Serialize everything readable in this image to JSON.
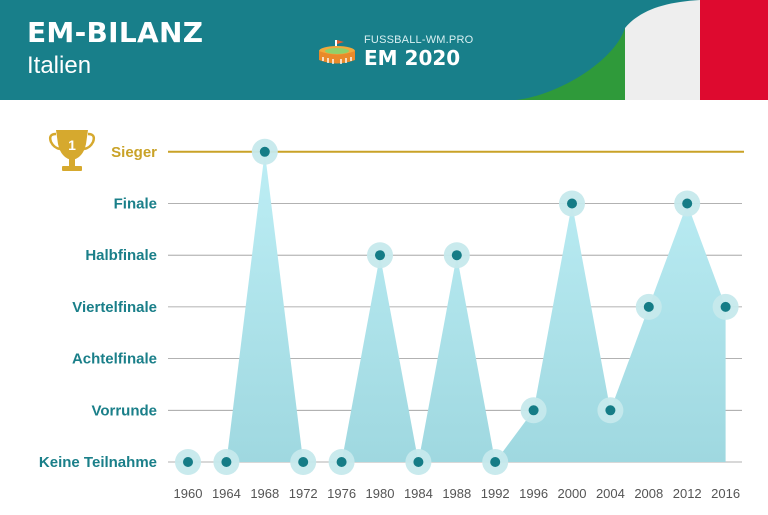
{
  "header": {
    "title": "EM-BILANZ",
    "subtitle": "Italien",
    "brand_site": "FUSSBALL-WM.PRO",
    "brand_event": "EM 2020",
    "trophy_number": "1",
    "colors": {
      "header_bg": "#187f8a",
      "flag_green": "#2f9a3a",
      "flag_white": "#eeeeee",
      "flag_red": "#de0a2f"
    }
  },
  "chart_data": {
    "type": "area",
    "x": [
      1960,
      1964,
      1968,
      1972,
      1976,
      1980,
      1984,
      1988,
      1992,
      1996,
      2000,
      2004,
      2008,
      2012,
      2016
    ],
    "levels": [
      "Keine Teilnahme",
      "Vorrunde",
      "Achtelfinale",
      "Viertelfinale",
      "Halbfinale",
      "Finale",
      "Sieger"
    ],
    "values": [
      0,
      0,
      6,
      0,
      0,
      4,
      0,
      4,
      0,
      1,
      5,
      1,
      3,
      5,
      3
    ],
    "highlight_level": "Sieger",
    "grid": true,
    "colors": {
      "label": "#1a7f89",
      "winner": "#c9a227",
      "point": "#157c86",
      "halo": "#c6e9ec",
      "area_top": "#bdeef5",
      "area_bottom": "#9fd8e0",
      "grid": "#999999"
    }
  }
}
